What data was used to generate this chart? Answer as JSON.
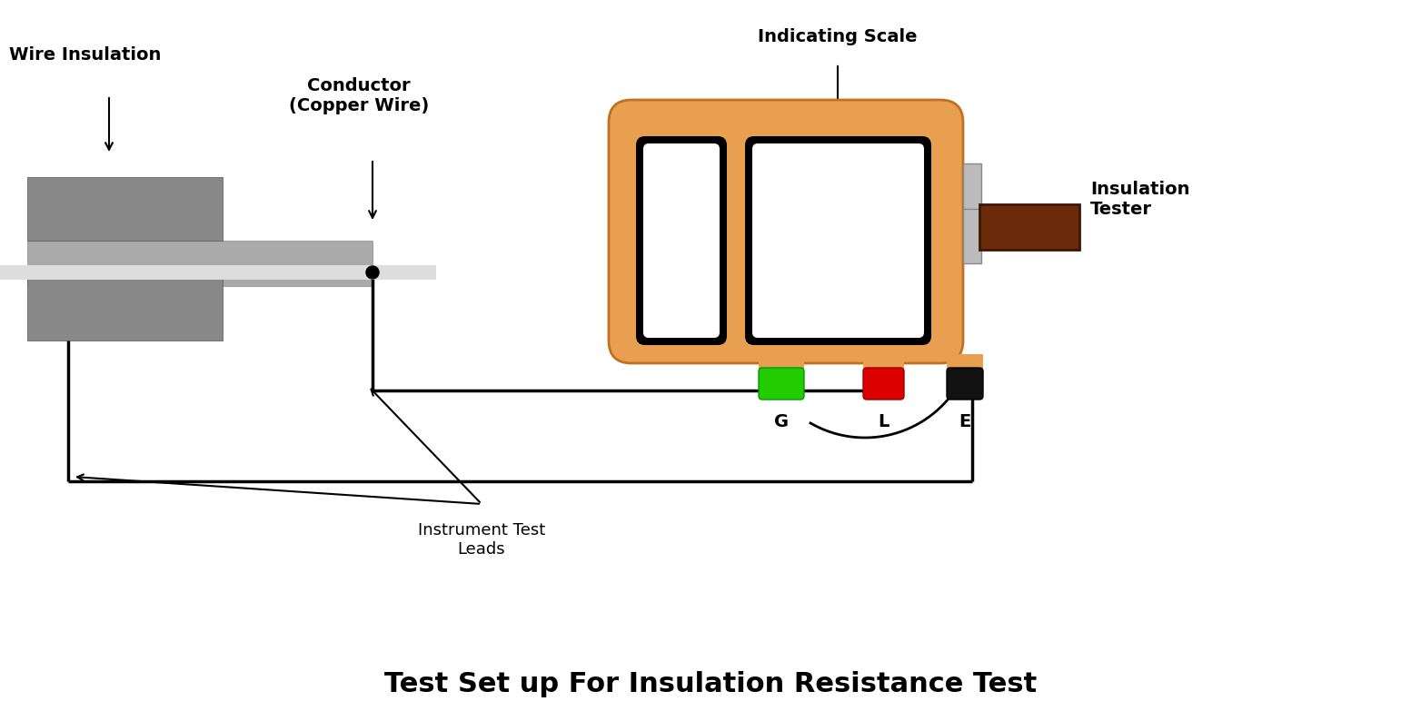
{
  "title": "Test Set up For Insulation Resistance Test",
  "title_fontsize": 22,
  "bg_color": "#ffffff",
  "label_wire_insulation": "Wire Insulation",
  "label_conductor": "Conductor\n(Copper Wire)",
  "label_indicating_scale": "Indicating Scale",
  "label_insulation_tester": "Insulation\nTester",
  "label_instrument_test_leads": "Instrument Test\nLeads",
  "label_G": "G",
  "label_L": "L",
  "label_E": "E",
  "color_orange": "#E8A050",
  "color_dark_gray1": "#888888",
  "color_dark_gray2": "#aaaaaa",
  "color_light_gray": "#dddddd",
  "color_green_terminal": "#22cc00",
  "color_red_terminal": "#dd0000",
  "color_black_terminal": "#111111",
  "color_handle_brown": "#6b2a0a",
  "color_white": "#ffffff",
  "color_black": "#000000"
}
